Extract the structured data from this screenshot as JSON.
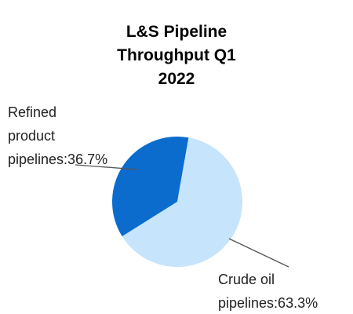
{
  "chart_data": {
    "type": "pie",
    "title": "L&S Pipeline Throughput Q1 2022",
    "values": [
      36.7,
      63.3
    ],
    "value_labels": [
      "Refined product pipelines:36.7%",
      "Crude oil pipelines:63.3%"
    ],
    "colors": [
      "#0b6cce",
      "#c6e4fb"
    ]
  }
}
